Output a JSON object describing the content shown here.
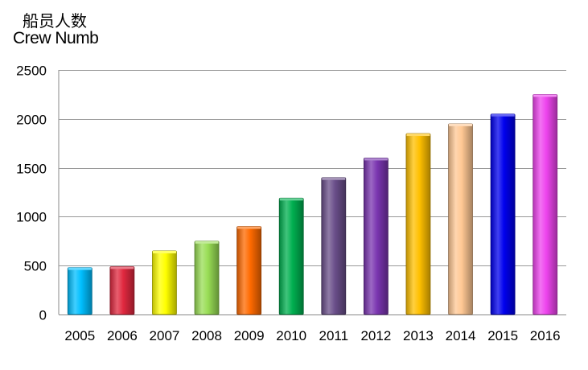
{
  "chart_data": {
    "type": "bar",
    "title_cn": "船员人数",
    "title_en": "Crew Numb",
    "categories": [
      "2005",
      "2006",
      "2007",
      "2008",
      "2009",
      "2010",
      "2011",
      "2012",
      "2013",
      "2014",
      "2015",
      "2016"
    ],
    "values": [
      480,
      490,
      650,
      750,
      900,
      1190,
      1400,
      1600,
      1850,
      1950,
      2050,
      2250
    ],
    "colors": [
      "#00bfff",
      "#e0283f",
      "#ffff00",
      "#99dd55",
      "#ff6a00",
      "#00b050",
      "#6a4f8a",
      "#7a35b0",
      "#ffc000",
      "#ffc894",
      "#0000ee",
      "#ee44ee"
    ],
    "ylim": [
      0,
      2500
    ],
    "yticks": [
      0,
      500,
      1000,
      1500,
      2000,
      2500
    ],
    "grid": true
  }
}
